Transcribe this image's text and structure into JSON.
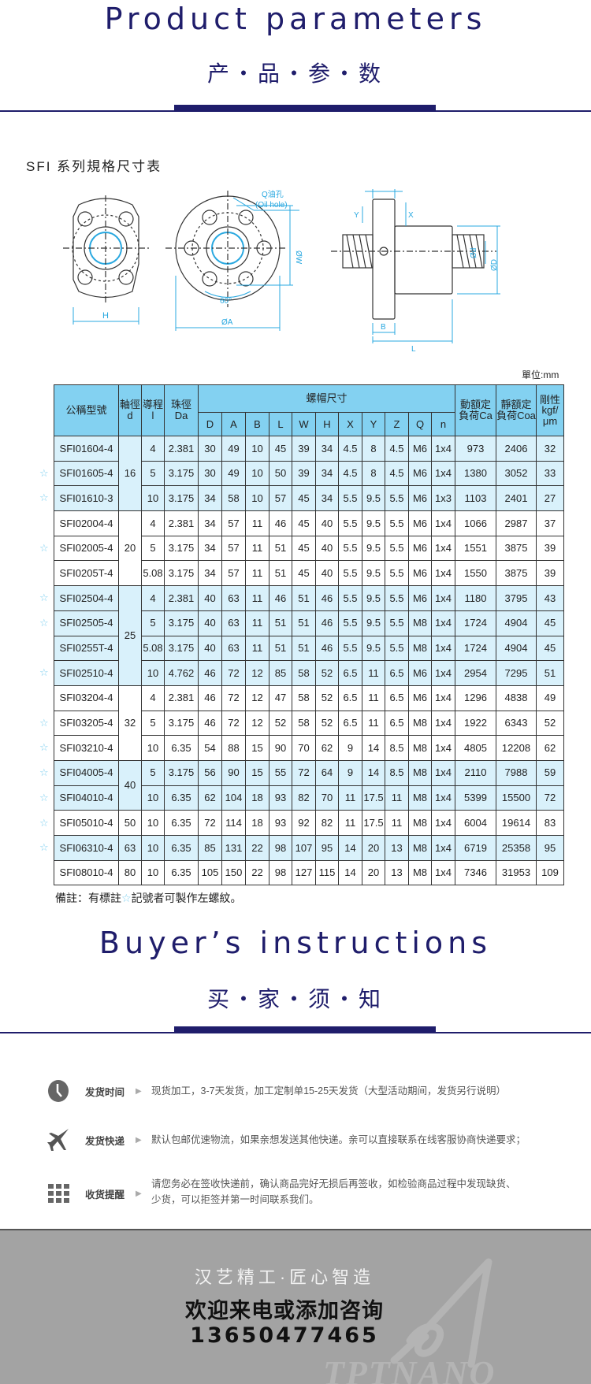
{
  "header": {
    "title_en": "Product parameters",
    "title_cn": "产・品・参・数"
  },
  "section": {
    "subtitle": "SFI 系列規格尺寸表",
    "unit": "單位:mm"
  },
  "diagram": {
    "oil_hole_cn": "Q油孔",
    "oil_hole_en": "(Oil hole)",
    "labels": {
      "H": "H",
      "W": "ØW",
      "A": "ØA",
      "angle": "60°",
      "Z": "Z",
      "Y": "Y",
      "X": "X",
      "B": "B",
      "L": "L",
      "d": "Ød",
      "D": "ØD"
    }
  },
  "table": {
    "headers": {
      "model": "公稱型號",
      "shaft": "軸徑d",
      "lead": "導程l",
      "ball": "珠徑Da",
      "nut": "螺帽尺寸",
      "dims": [
        "D",
        "A",
        "B",
        "L",
        "W",
        "H",
        "X",
        "Y",
        "Z",
        "Q",
        "n"
      ],
      "ca": "動額定負荷Ca",
      "coa": "靜額定負荷Coa",
      "rigidity": "剛性kgf/μm"
    },
    "groups": [
      {
        "d": "16",
        "shaded": true,
        "rows": [
          {
            "star": false,
            "v": [
              "SFI01604-4",
              "4",
              "2.381",
              "30",
              "49",
              "10",
              "45",
              "39",
              "34",
              "4.5",
              "8",
              "4.5",
              "M6",
              "1x4",
              "973",
              "2406",
              "32"
            ]
          },
          {
            "star": true,
            "v": [
              "SFI01605-4",
              "5",
              "3.175",
              "30",
              "49",
              "10",
              "50",
              "39",
              "34",
              "4.5",
              "8",
              "4.5",
              "M6",
              "1x4",
              "1380",
              "3052",
              "33"
            ]
          },
          {
            "star": true,
            "v": [
              "SFI01610-3",
              "10",
              "3.175",
              "34",
              "58",
              "10",
              "57",
              "45",
              "34",
              "5.5",
              "9.5",
              "5.5",
              "M6",
              "1x3",
              "1103",
              "2401",
              "27"
            ]
          }
        ]
      },
      {
        "d": "20",
        "shaded": false,
        "rows": [
          {
            "star": false,
            "v": [
              "SFI02004-4",
              "4",
              "2.381",
              "34",
              "57",
              "11",
              "46",
              "45",
              "40",
              "5.5",
              "9.5",
              "5.5",
              "M6",
              "1x4",
              "1066",
              "2987",
              "37"
            ]
          },
          {
            "star": true,
            "v": [
              "SFI02005-4",
              "5",
              "3.175",
              "34",
              "57",
              "11",
              "51",
              "45",
              "40",
              "5.5",
              "9.5",
              "5.5",
              "M6",
              "1x4",
              "1551",
              "3875",
              "39"
            ]
          },
          {
            "star": false,
            "v": [
              "SFI0205T-4",
              "5.08",
              "3.175",
              "34",
              "57",
              "11",
              "51",
              "45",
              "40",
              "5.5",
              "9.5",
              "5.5",
              "M6",
              "1x4",
              "1550",
              "3875",
              "39"
            ]
          }
        ]
      },
      {
        "d": "25",
        "shaded": true,
        "rows": [
          {
            "star": true,
            "v": [
              "SFI02504-4",
              "4",
              "2.381",
              "40",
              "63",
              "11",
              "46",
              "51",
              "46",
              "5.5",
              "9.5",
              "5.5",
              "M6",
              "1x4",
              "1180",
              "3795",
              "43"
            ]
          },
          {
            "star": true,
            "v": [
              "SFI02505-4",
              "5",
              "3.175",
              "40",
              "63",
              "11",
              "51",
              "51",
              "46",
              "5.5",
              "9.5",
              "5.5",
              "M8",
              "1x4",
              "1724",
              "4904",
              "45"
            ]
          },
          {
            "star": false,
            "v": [
              "SFI0255T-4",
              "5.08",
              "3.175",
              "40",
              "63",
              "11",
              "51",
              "51",
              "46",
              "5.5",
              "9.5",
              "5.5",
              "M8",
              "1x4",
              "1724",
              "4904",
              "45"
            ]
          },
          {
            "star": true,
            "v": [
              "SFI02510-4",
              "10",
              "4.762",
              "46",
              "72",
              "12",
              "85",
              "58",
              "52",
              "6.5",
              "11",
              "6.5",
              "M6",
              "1x4",
              "2954",
              "7295",
              "51"
            ]
          }
        ]
      },
      {
        "d": "32",
        "shaded": false,
        "rows": [
          {
            "star": false,
            "v": [
              "SFI03204-4",
              "4",
              "2.381",
              "46",
              "72",
              "12",
              "47",
              "58",
              "52",
              "6.5",
              "11",
              "6.5",
              "M6",
              "1x4",
              "1296",
              "4838",
              "49"
            ]
          },
          {
            "star": true,
            "v": [
              "SFI03205-4",
              "5",
              "3.175",
              "46",
              "72",
              "12",
              "52",
              "58",
              "52",
              "6.5",
              "11",
              "6.5",
              "M8",
              "1x4",
              "1922",
              "6343",
              "52"
            ]
          },
          {
            "star": true,
            "v": [
              "SFI03210-4",
              "10",
              "6.35",
              "54",
              "88",
              "15",
              "90",
              "70",
              "62",
              "9",
              "14",
              "8.5",
              "M8",
              "1x4",
              "4805",
              "12208",
              "62"
            ]
          }
        ]
      },
      {
        "d": "40",
        "shaded": true,
        "rows": [
          {
            "star": true,
            "v": [
              "SFI04005-4",
              "5",
              "3.175",
              "56",
              "90",
              "15",
              "55",
              "72",
              "64",
              "9",
              "14",
              "8.5",
              "M8",
              "1x4",
              "2110",
              "7988",
              "59"
            ]
          },
          {
            "star": true,
            "v": [
              "SFI04010-4",
              "10",
              "6.35",
              "62",
              "104",
              "18",
              "93",
              "82",
              "70",
              "11",
              "17.5",
              "11",
              "M8",
              "1x4",
              "5399",
              "15500",
              "72"
            ]
          }
        ]
      },
      {
        "d": "50",
        "shaded": false,
        "rows": [
          {
            "star": true,
            "v": [
              "SFI05010-4",
              "10",
              "6.35",
              "72",
              "114",
              "18",
              "93",
              "92",
              "82",
              "11",
              "17.5",
              "11",
              "M8",
              "1x4",
              "6004",
              "19614",
              "83"
            ]
          }
        ]
      },
      {
        "d": "63",
        "shaded": true,
        "rows": [
          {
            "star": true,
            "v": [
              "SFI06310-4",
              "10",
              "6.35",
              "85",
              "131",
              "22",
              "98",
              "107",
              "95",
              "14",
              "20",
              "13",
              "M8",
              "1x4",
              "6719",
              "25358",
              "95"
            ]
          }
        ]
      },
      {
        "d": "80",
        "shaded": false,
        "rows": [
          {
            "star": false,
            "v": [
              "SFI08010-4",
              "10",
              "6.35",
              "105",
              "150",
              "22",
              "98",
              "127",
              "115",
              "14",
              "20",
              "13",
              "M8",
              "1x4",
              "7346",
              "31953",
              "109"
            ]
          }
        ]
      }
    ],
    "star_glyph": "☆",
    "note_pre": "備註：有標註",
    "note_post": "記號者可製作左螺紋。"
  },
  "buyer": {
    "title_en": "Buyer’s instructions",
    "title_cn": "买・家・须・知",
    "items": [
      {
        "icon": "clock-icon",
        "label": "发货时间",
        "text": [
          "现货加工，3-7天发货，加工定制单15-25天发货（大型活动期间，发货另行说明）"
        ]
      },
      {
        "icon": "airplane-icon",
        "label": "发货快递",
        "text": [
          "默认包邮优速物流，如果亲想发送其他快递。亲可以直接联系在线客服协商快递要求；"
        ]
      },
      {
        "icon": "grid-icon",
        "label": "收货提醒",
        "text": [
          "请您务必在签收快递前，确认商品完好无损后再签收，如检验商品过程中发现缺货、",
          "少货，可以拒签并第一时间联系我们。"
        ]
      }
    ]
  },
  "footer": {
    "slogan": "汉艺精工·匠心智造",
    "cta": "欢迎来电或添加咨询",
    "phone": "13650477465",
    "watermark": "TPTNANO"
  },
  "colors": {
    "navy": "#1f1d6b",
    "header_blue": "#83d1f1",
    "row_blue": "#d9f1fb",
    "dimension_blue": "#29a8e0",
    "footer_gray": "#a3a3a3"
  }
}
